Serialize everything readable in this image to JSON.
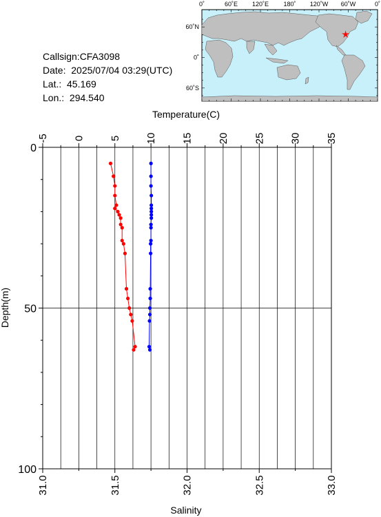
{
  "header": {
    "callsign": "Callsign:CFA3098",
    "date": "Date:  2025/07/04 03:29(UTC)",
    "lat": "Lat.:  45.169",
    "lon": "Lon.:  294.540"
  },
  "map": {
    "lon_labels": [
      "0˚",
      "60˚E",
      "120˚E",
      "180˚",
      "120˚W",
      "60˚W",
      "0˚"
    ],
    "lat_labels": [
      "60˚N",
      "0˚",
      "60˚S"
    ],
    "ocean_color": "#c8f0fa",
    "land_color": "#bfbfbf",
    "marker_color": "#ff0000",
    "marker": {
      "lat": 45.169,
      "lon": 294.54
    }
  },
  "chart_data": {
    "type": "scatter",
    "top_axis": {
      "label": "Temperature(C)",
      "range": [
        -5,
        35
      ],
      "ticks": [
        "-5",
        "0",
        "5",
        "10",
        "15",
        "20",
        "25",
        "30",
        "35"
      ]
    },
    "bottom_axis": {
      "label": "Salinity",
      "range": [
        31.0,
        33.0
      ],
      "ticks": [
        "31.0",
        "31.5",
        "32.0",
        "32.5",
        "33.0"
      ]
    },
    "y_axis": {
      "label": "Depth(m)",
      "range": [
        0,
        100
      ],
      "inverted": true,
      "ticks": [
        "0",
        "50",
        "100"
      ]
    },
    "grid": true,
    "series": [
      {
        "axis": "salinity",
        "color": "#ff0000",
        "points": [
          {
            "x": 31.47,
            "y": 5
          },
          {
            "x": 31.49,
            "y": 9
          },
          {
            "x": 31.5,
            "y": 12
          },
          {
            "x": 31.5,
            "y": 15
          },
          {
            "x": 31.51,
            "y": 18
          },
          {
            "x": 31.5,
            "y": 19
          },
          {
            "x": 31.52,
            "y": 20
          },
          {
            "x": 31.53,
            "y": 21
          },
          {
            "x": 31.54,
            "y": 22
          },
          {
            "x": 31.54,
            "y": 24
          },
          {
            "x": 31.55,
            "y": 25
          },
          {
            "x": 31.55,
            "y": 29
          },
          {
            "x": 31.56,
            "y": 30
          },
          {
            "x": 31.57,
            "y": 33
          },
          {
            "x": 31.58,
            "y": 44
          },
          {
            "x": 31.59,
            "y": 47
          },
          {
            "x": 31.6,
            "y": 50
          },
          {
            "x": 31.61,
            "y": 52
          },
          {
            "x": 31.62,
            "y": 54
          },
          {
            "x": 31.64,
            "y": 62
          },
          {
            "x": 31.63,
            "y": 63
          }
        ]
      },
      {
        "axis": "temperature",
        "color": "#0000ff",
        "points": [
          {
            "x": 10.0,
            "y": 5
          },
          {
            "x": 10.0,
            "y": 9
          },
          {
            "x": 10.0,
            "y": 12
          },
          {
            "x": 10.05,
            "y": 15
          },
          {
            "x": 10.05,
            "y": 18
          },
          {
            "x": 10.05,
            "y": 19
          },
          {
            "x": 10.05,
            "y": 20
          },
          {
            "x": 10.05,
            "y": 21
          },
          {
            "x": 10.05,
            "y": 22
          },
          {
            "x": 10.0,
            "y": 24
          },
          {
            "x": 10.0,
            "y": 25
          },
          {
            "x": 10.0,
            "y": 29
          },
          {
            "x": 9.95,
            "y": 30
          },
          {
            "x": 9.95,
            "y": 33
          },
          {
            "x": 9.9,
            "y": 44
          },
          {
            "x": 9.9,
            "y": 47
          },
          {
            "x": 9.85,
            "y": 50
          },
          {
            "x": 9.85,
            "y": 52
          },
          {
            "x": 9.8,
            "y": 54
          },
          {
            "x": 9.75,
            "y": 62
          },
          {
            "x": 9.85,
            "y": 63
          }
        ]
      }
    ]
  }
}
